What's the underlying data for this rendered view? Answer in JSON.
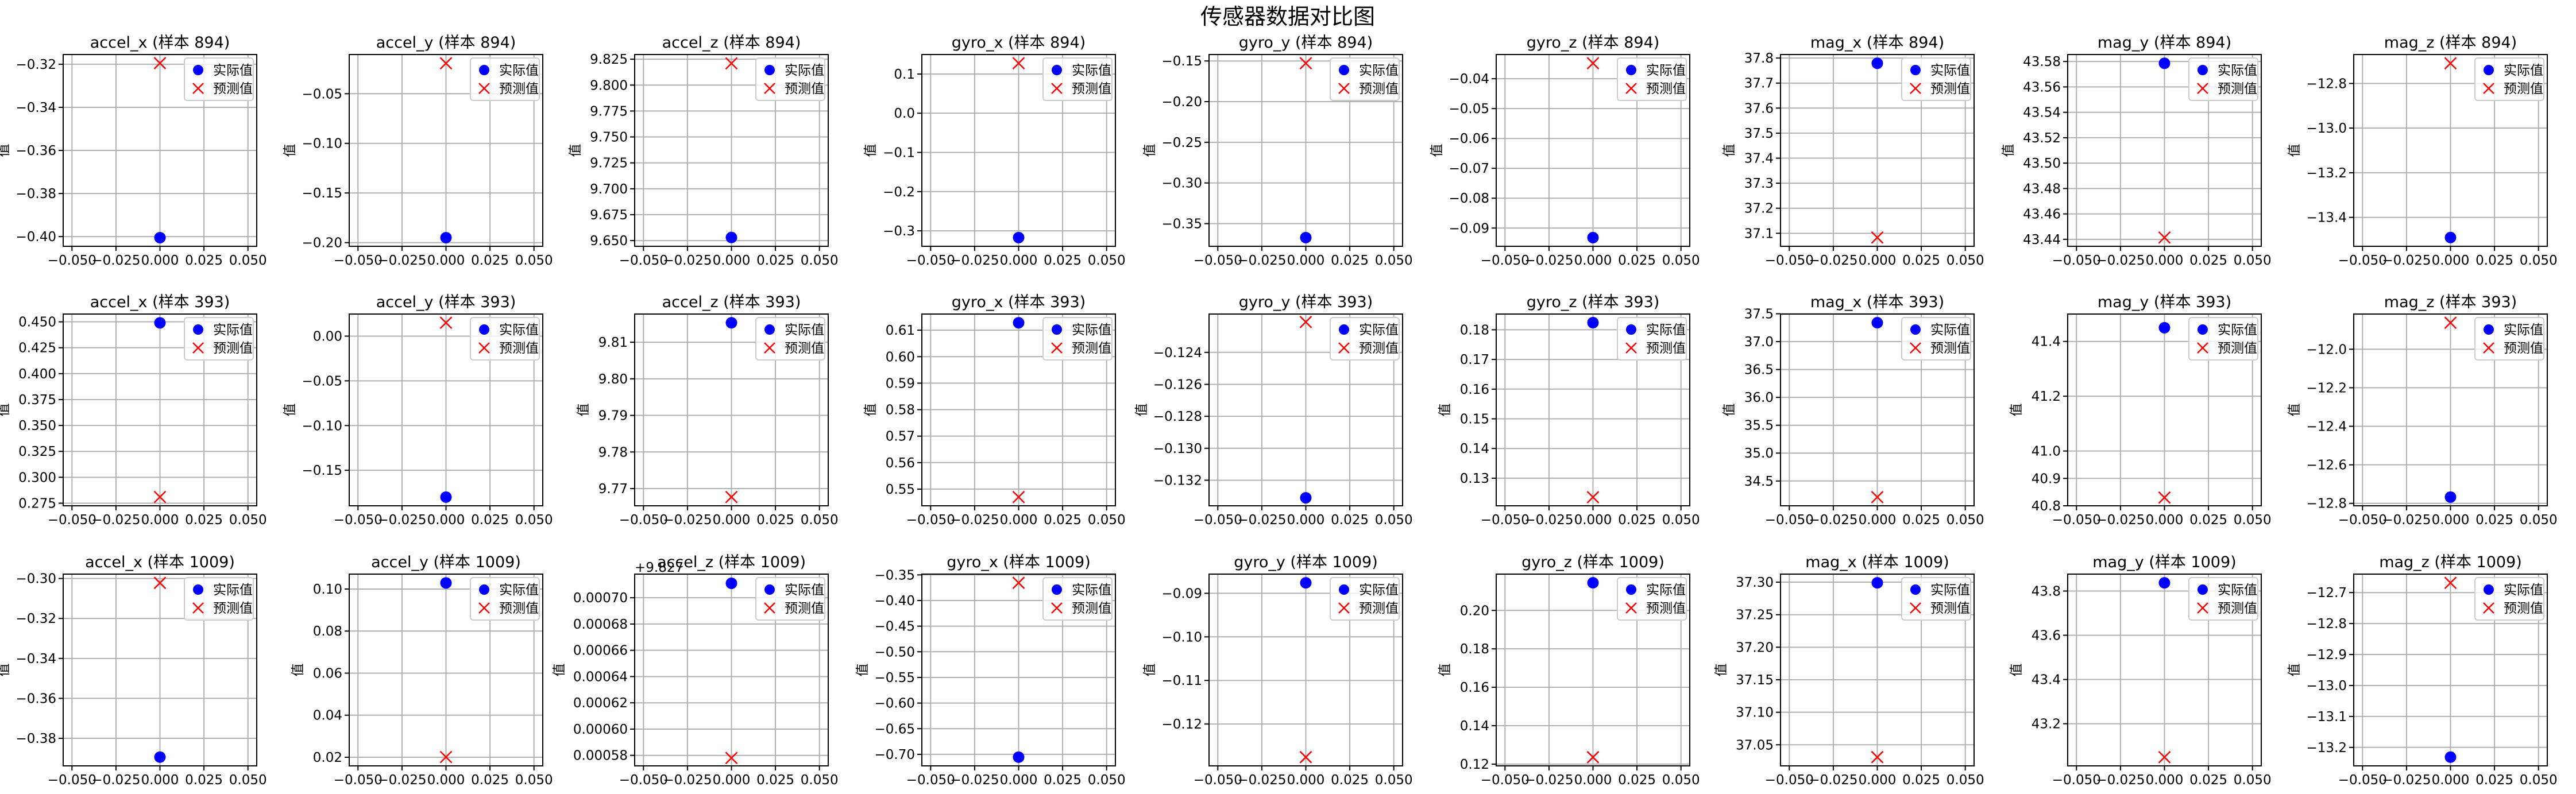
{
  "figure": {
    "title": "传感器数据对比图",
    "colors": {
      "actual": "#0000ff",
      "predicted": "#ff0000",
      "grid": "#b0b0b0"
    }
  },
  "chart_data": {
    "type": "scatter",
    "legend": {
      "placement": "upper right",
      "entries": [
        {
          "label": "实际值",
          "marker": "circle",
          "color": "#0000ff"
        },
        {
          "label": "预测值",
          "marker": "x",
          "color": "#ff0000"
        }
      ]
    },
    "x_ticks": [
      "−0.050",
      "−0.025",
      "0.000",
      "0.025",
      "0.050"
    ],
    "x_ticks_values": [
      -0.05,
      -0.025,
      0,
      0.025,
      0.05
    ],
    "xlim": [
      -0.055,
      0.055
    ],
    "grid": true,
    "panels": [
      {
        "title": "accel_x (样本 894)",
        "ylabel": "值",
        "ylim": [
          -0.4045,
          -0.3155
        ],
        "yticks": [
          "−0.32",
          "−0.34",
          "−0.36",
          "−0.38",
          "−0.40"
        ],
        "ytick_values": [
          -0.32,
          -0.34,
          -0.36,
          -0.38,
          -0.4
        ],
        "actual": -0.4005,
        "predicted": -0.3195
      },
      {
        "title": "accel_y (样本 894)",
        "ylabel": "值",
        "ylim": [
          -0.2037,
          -0.0105
        ],
        "yticks": [
          "−0.05",
          "−0.10",
          "−0.15",
          "−0.20"
        ],
        "ytick_values": [
          -0.05,
          -0.1,
          -0.15,
          -0.2
        ],
        "actual": -0.195,
        "predicted": -0.0193
      },
      {
        "title": "accel_z (样本 894)",
        "ylabel": "值",
        "ylim": [
          9.6445,
          9.8295
        ],
        "yticks": [
          "9.825",
          "9.800",
          "9.775",
          "9.750",
          "9.725",
          "9.700",
          "9.675",
          "9.650"
        ],
        "ytick_values": [
          9.825,
          9.8,
          9.775,
          9.75,
          9.725,
          9.7,
          9.675,
          9.65
        ],
        "actual": 9.653,
        "predicted": 9.821
      },
      {
        "title": "gyro_x (样本 894)",
        "ylabel": "值",
        "ylim": [
          -0.3394,
          0.1496
        ],
        "yticks": [
          "0.1",
          "0.0",
          "−0.1",
          "−0.2",
          "−0.3"
        ],
        "ytick_values": [
          0.1,
          0,
          -0.1,
          -0.2,
          -0.3
        ],
        "actual": -0.3172,
        "predicted": 0.1274
      },
      {
        "title": "gyro_y (样本 894)",
        "ylabel": "值",
        "ylim": [
          -0.3779,
          -0.1421
        ],
        "yticks": [
          "−0.15",
          "−0.20",
          "−0.25",
          "−0.30",
          "−0.35"
        ],
        "ytick_values": [
          -0.15,
          -0.2,
          -0.25,
          -0.3,
          -0.35
        ],
        "actual": -0.3672,
        "predicted": -0.1528
      },
      {
        "title": "gyro_z (样本 894)",
        "ylabel": "值",
        "ylim": [
          -0.0961,
          -0.0319
        ],
        "yticks": [
          "−0.04",
          "−0.05",
          "−0.06",
          "−0.07",
          "−0.08",
          "−0.09"
        ],
        "ytick_values": [
          -0.04,
          -0.05,
          -0.06,
          -0.07,
          -0.08,
          -0.09
        ],
        "actual": -0.0932,
        "predicted": -0.0348
      },
      {
        "title": "mag_x (样本 894)",
        "ylabel": "值",
        "ylim": [
          37.048,
          37.814
        ],
        "yticks": [
          "37.8",
          "37.7",
          "37.6",
          "37.5",
          "37.4",
          "37.3",
          "37.2",
          "37.1"
        ],
        "ytick_values": [
          37.8,
          37.7,
          37.6,
          37.5,
          37.4,
          37.3,
          37.2,
          37.1
        ],
        "actual": 37.779,
        "predicted": 37.083
      },
      {
        "title": "mag_y (样本 894)",
        "ylabel": "值",
        "ylim": [
          43.4345,
          43.5855
        ],
        "yticks": [
          "43.58",
          "43.56",
          "43.54",
          "43.52",
          "43.50",
          "43.48",
          "43.46",
          "43.44"
        ],
        "ytick_values": [
          43.58,
          43.56,
          43.54,
          43.52,
          43.5,
          43.48,
          43.46,
          43.44
        ],
        "actual": 43.5786,
        "predicted": 43.4414
      },
      {
        "title": "mag_z (样本 894)",
        "ylabel": "值",
        "ylim": [
          -13.5295,
          -12.6705
        ],
        "yticks": [
          "−12.8",
          "−13.0",
          "−13.2",
          "−13.4"
        ],
        "ytick_values": [
          -12.8,
          -13.0,
          -13.2,
          -13.4
        ],
        "actual": -13.4904,
        "predicted": -12.7096
      },
      {
        "title": "accel_x (样本 393)",
        "ylabel": "值",
        "ylim": [
          0.2725,
          0.4575
        ],
        "yticks": [
          "0.450",
          "0.425",
          "0.400",
          "0.375",
          "0.350",
          "0.325",
          "0.300",
          "0.275"
        ],
        "ytick_values": [
          0.45,
          0.425,
          0.4,
          0.375,
          0.35,
          0.325,
          0.3,
          0.275
        ],
        "actual": 0.449,
        "predicted": 0.281
      },
      {
        "title": "accel_y (样本 393)",
        "ylabel": "值",
        "ylim": [
          -0.1897,
          0.0247
        ],
        "yticks": [
          "0.00",
          "−0.05",
          "−0.10",
          "−0.15"
        ],
        "ytick_values": [
          0,
          -0.05,
          -0.1,
          -0.15
        ],
        "actual": -0.18,
        "predicted": 0.015
      },
      {
        "title": "accel_z (样本 393)",
        "ylabel": "值",
        "ylim": [
          9.7653,
          9.8177
        ],
        "yticks": [
          "9.81",
          "9.80",
          "9.79",
          "9.78",
          "9.77"
        ],
        "ytick_values": [
          9.81,
          9.8,
          9.79,
          9.78,
          9.77
        ],
        "actual": 9.8153,
        "predicted": 9.7677
      },
      {
        "title": "gyro_x (样本 393)",
        "ylabel": "值",
        "ylim": [
          0.5437,
          0.6161
        ],
        "yticks": [
          "0.61",
          "0.60",
          "0.59",
          "0.58",
          "0.57",
          "0.56",
          "0.55"
        ],
        "ytick_values": [
          0.61,
          0.6,
          0.59,
          0.58,
          0.57,
          0.56,
          0.55
        ],
        "actual": 0.6128,
        "predicted": 0.547
      },
      {
        "title": "gyro_y (样本 393)",
        "ylabel": "值",
        "ylim": [
          -0.1336,
          -0.1216
        ],
        "yticks": [
          "−0.124",
          "−0.126",
          "−0.128",
          "−0.130",
          "−0.132"
        ],
        "ytick_values": [
          -0.124,
          -0.126,
          -0.128,
          -0.13,
          -0.132
        ],
        "actual": -0.1331,
        "predicted": -0.1221
      },
      {
        "title": "gyro_z (样本 393)",
        "ylabel": "值",
        "ylim": [
          0.1207,
          0.1853
        ],
        "yticks": [
          "0.18",
          "0.17",
          "0.16",
          "0.15",
          "0.14",
          "0.13"
        ],
        "ytick_values": [
          0.18,
          0.17,
          0.16,
          0.15,
          0.14,
          0.13
        ],
        "actual": 0.1824,
        "predicted": 0.1236
      },
      {
        "title": "mag_x (样本 393)",
        "ylabel": "值",
        "ylim": [
          34.055,
          37.495
        ],
        "yticks": [
          "37.5",
          "37.0",
          "36.5",
          "36.0",
          "35.5",
          "35.0",
          "34.5"
        ],
        "ytick_values": [
          37.5,
          37.0,
          36.5,
          36.0,
          35.5,
          35.0,
          34.5
        ],
        "actual": 37.339,
        "predicted": 34.211
      },
      {
        "title": "mag_y (样本 393)",
        "ylabel": "值",
        "ylim": [
          40.8,
          41.5
        ],
        "yticks": [
          "41.4",
          "41.2",
          "41.0",
          "40.9",
          "40.8"
        ],
        "ytick_values": [
          41.4,
          41.2,
          41.0,
          40.9,
          40.8
        ],
        "actual": 41.45,
        "predicted": 40.83
      },
      {
        "title": "mag_z (样本 393)",
        "ylabel": "值",
        "ylim": [
          -12.8127,
          -11.8173
        ],
        "yticks": [
          "−12.0",
          "−12.2",
          "−12.4",
          "−12.6",
          "−12.8"
        ],
        "ytick_values": [
          -12.0,
          -12.2,
          -12.4,
          -12.6,
          -12.8
        ],
        "actual": -12.7675,
        "predicted": -11.8625
      },
      {
        "title": "accel_x (样本 1009)",
        "ylabel": "值",
        "ylim": [
          -0.3938,
          -0.2978
        ],
        "yticks": [
          "−0.30",
          "−0.32",
          "−0.34",
          "−0.36",
          "−0.38"
        ],
        "ytick_values": [
          -0.3,
          -0.32,
          -0.34,
          -0.36,
          -0.38
        ],
        "actual": -0.3894,
        "predicted": -0.3022
      },
      {
        "title": "accel_y (样本 1009)",
        "ylabel": "值",
        "ylim": [
          0.0159,
          0.1071
        ],
        "yticks": [
          "0.10",
          "0.08",
          "0.06",
          "0.04",
          "0.02"
        ],
        "ytick_values": [
          0.1,
          0.08,
          0.06,
          0.04,
          0.02
        ],
        "actual": 0.1029,
        "predicted": 0.0201
      },
      {
        "title": "accel_z (样本 1009)",
        "ylabel": "值",
        "axis_offset_label": "+9.827",
        "ylim": [
          0.000572,
          0.000718
        ],
        "yticks": [
          "0.00070",
          "0.00068",
          "0.00066",
          "0.00064",
          "0.00062",
          "0.00060",
          "0.00058"
        ],
        "ytick_values": [
          0.0007,
          0.00068,
          0.00066,
          0.00064,
          0.00062,
          0.0006,
          0.00058
        ],
        "actual": 0.000711,
        "predicted": 0.000578
      },
      {
        "title": "gyro_x (样本 1009)",
        "ylabel": "值",
        "ylim": [
          -0.7225,
          -0.3485
        ],
        "yticks": [
          "−0.35",
          "−0.40",
          "−0.45",
          "−0.50",
          "−0.55",
          "−0.60",
          "−0.65",
          "−0.70"
        ],
        "ytick_values": [
          -0.35,
          -0.4,
          -0.45,
          -0.5,
          -0.55,
          -0.6,
          -0.65,
          -0.7
        ],
        "actual": -0.7055,
        "predicted": -0.3655
      },
      {
        "title": "gyro_y (样本 1009)",
        "ylabel": "值",
        "ylim": [
          -0.1296,
          -0.0856
        ],
        "yticks": [
          "−0.09",
          "−0.10",
          "−0.11",
          "−0.12"
        ],
        "ytick_values": [
          -0.09,
          -0.1,
          -0.11,
          -0.12
        ],
        "actual": -0.0876,
        "predicted": -0.1276
      },
      {
        "title": "gyro_z (样本 1009)",
        "ylabel": "值",
        "ylim": [
          0.1191,
          0.2189
        ],
        "yticks": [
          "0.20",
          "0.18",
          "0.16",
          "0.14",
          "0.12"
        ],
        "ytick_values": [
          0.2,
          0.18,
          0.16,
          0.14,
          0.12
        ],
        "actual": 0.2144,
        "predicted": 0.1236
      },
      {
        "title": "mag_x (样本 1009)",
        "ylabel": "值",
        "ylim": [
          37.0176,
          37.3124
        ],
        "yticks": [
          "37.30",
          "37.25",
          "37.20",
          "37.15",
          "37.10",
          "37.05"
        ],
        "ytick_values": [
          37.3,
          37.25,
          37.2,
          37.15,
          37.1,
          37.05
        ],
        "actual": 37.299,
        "predicted": 37.031
      },
      {
        "title": "mag_y (样本 1009)",
        "ylabel": "值",
        "ylim": [
          43.0094,
          43.8766
        ],
        "yticks": [
          "43.8",
          "43.6",
          "43.4",
          "43.2"
        ],
        "ytick_values": [
          43.8,
          43.6,
          43.4,
          43.2
        ],
        "actual": 43.8372,
        "predicted": 43.0488
      },
      {
        "title": "mag_z (样本 1009)",
        "ylabel": "值",
        "ylim": [
          -13.2597,
          -12.6403
        ],
        "yticks": [
          "−12.7",
          "−12.8",
          "−12.9",
          "−13.0",
          "−13.1",
          "−13.2"
        ],
        "ytick_values": [
          -12.7,
          -12.8,
          -12.9,
          -13.0,
          -13.1,
          -13.2
        ],
        "actual": -13.2315,
        "predicted": -12.6685
      }
    ]
  }
}
